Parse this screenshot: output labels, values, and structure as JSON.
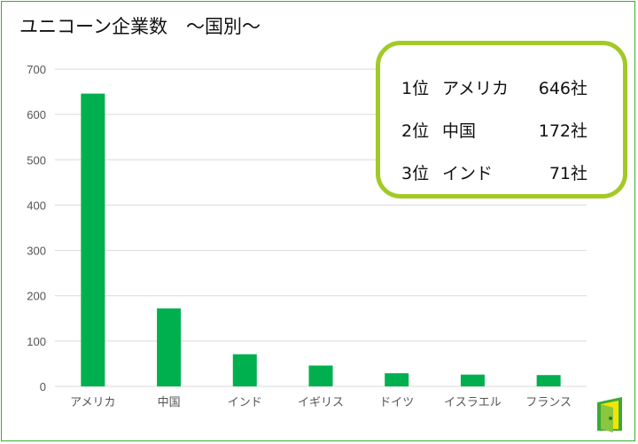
{
  "title": "ユニコーン企業数　～国別～",
  "ranking": [
    {
      "rank": "1位",
      "country": "アメリカ",
      "count": "646社"
    },
    {
      "rank": "2位",
      "country": "中国",
      "count": "172社"
    },
    {
      "rank": "3位",
      "country": "インド",
      "count": "71社"
    }
  ],
  "colors": {
    "bar": "#00b04f",
    "grid": "#d9d9d9",
    "frame": "#3aaa35",
    "ranking_border": "#a3c926"
  },
  "chart_data": {
    "type": "bar",
    "title": "ユニコーン企業数　～国別～",
    "categories": [
      "アメリカ",
      "中国",
      "インド",
      "イギリス",
      "ドイツ",
      "イスラエル",
      "フランス"
    ],
    "values": [
      646,
      172,
      71,
      46,
      29,
      26,
      25
    ],
    "yticks": [
      0,
      100,
      200,
      300,
      400,
      500,
      600,
      700
    ],
    "ylim": [
      0,
      700
    ],
    "grid": true,
    "legend": "none"
  }
}
